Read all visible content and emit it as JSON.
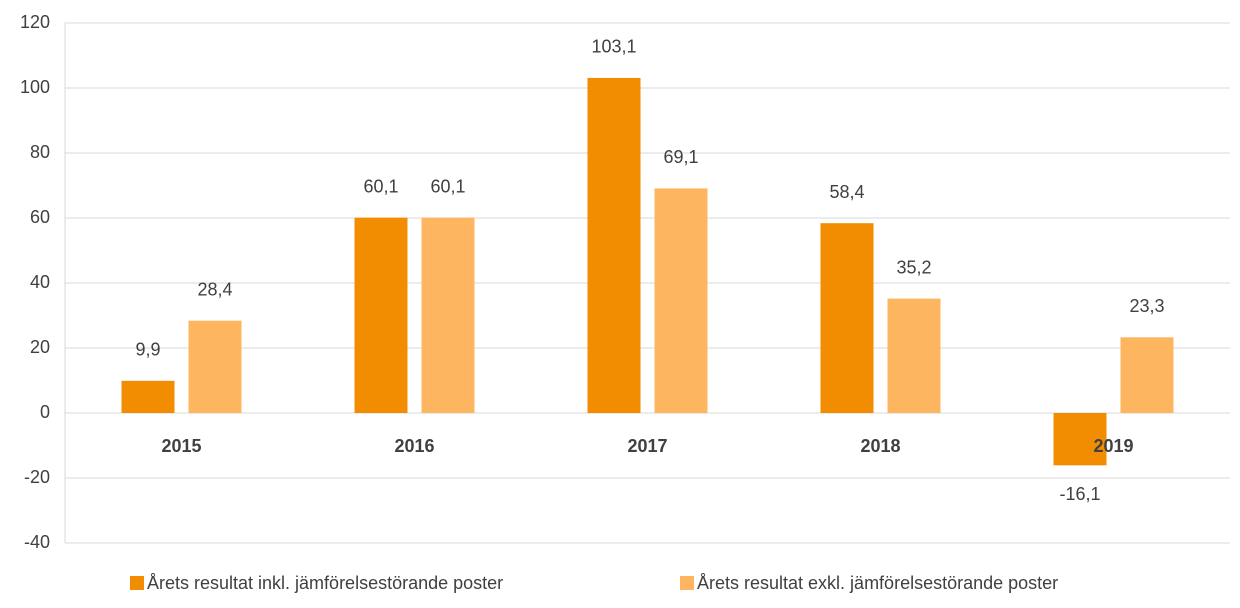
{
  "chart_data": {
    "type": "bar",
    "categories": [
      "2015",
      "2016",
      "2017",
      "2018",
      "2019"
    ],
    "series": [
      {
        "name": "Årets resultat inkl. jämförelsestörande poster",
        "color": "#f28c00",
        "values": [
          9.9,
          60.1,
          103.1,
          58.4,
          -16.1
        ],
        "value_labels": [
          "9,9",
          "60,1",
          "103,1",
          "58,4",
          "-16,1"
        ]
      },
      {
        "name": "Årets resultat exkl. jämförelsestörande poster",
        "color": "#fdb65f",
        "values": [
          28.4,
          60.1,
          69.1,
          35.2,
          23.3
        ],
        "value_labels": [
          "28,4",
          "60,1",
          "69,1",
          "35,2",
          "23,3"
        ]
      }
    ],
    "ylim": [
      -40,
      120
    ],
    "yticks": [
      -40,
      -20,
      0,
      20,
      40,
      60,
      80,
      100,
      120
    ],
    "grid": true,
    "legend": "bottom"
  }
}
